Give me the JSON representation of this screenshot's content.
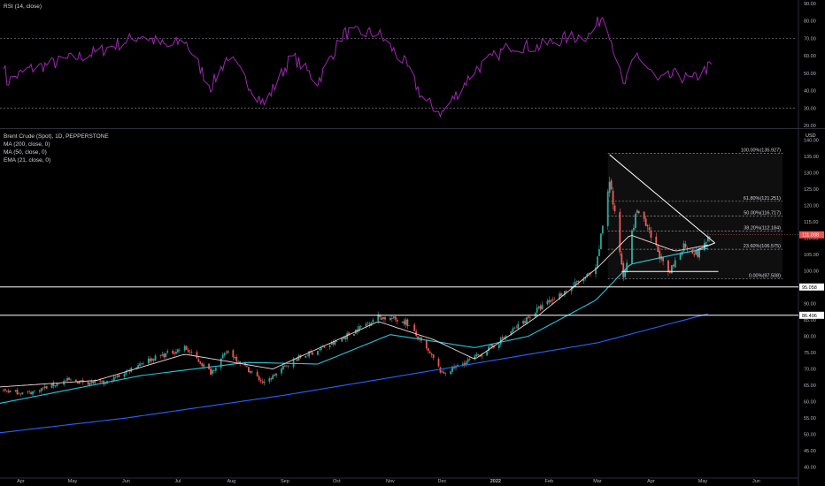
{
  "rsi_panel": {
    "label": "RSI (14, close)",
    "ticks": [
      "90.00",
      "80.00",
      "70.00",
      "60.00",
      "50.00",
      "40.00",
      "30.00",
      "20.00"
    ],
    "levels": [
      70,
      30
    ],
    "ylim": [
      20,
      90
    ],
    "color": "#9c27b0"
  },
  "main_panel": {
    "header": [
      "Brent Crude (Spot), 1D, PEPPERSTONE",
      "MA (200, close, 0)",
      "MA (50, close, 0)",
      "EMA (21, close, 0)"
    ],
    "currency": "USD",
    "ticks": [
      "140.00",
      "135.00",
      "130.00",
      "125.00",
      "120.00",
      "115.00",
      "110.00",
      "105.00",
      "100.00",
      "95.00",
      "90.00",
      "85.00",
      "80.00",
      "75.00",
      "70.00",
      "65.00",
      "60.00",
      "55.00",
      "50.00",
      "45.00",
      "40.00"
    ],
    "ylim": [
      38,
      142
    ],
    "last_price": "111.008",
    "horizontal_levels": [
      "95.058",
      "86.406"
    ],
    "fibonacci": [
      {
        "label": "100.00%(135.927)",
        "value": 135.927
      },
      {
        "label": "61.80%(121.251)",
        "value": 121.251
      },
      {
        "label": "50.00%(116.717)",
        "value": 116.717
      },
      {
        "label": "38.20%(112.184)",
        "value": 112.184
      },
      {
        "label": "23.60%(106.575)",
        "value": 106.575
      },
      {
        "label": "0.00%(97.508)",
        "value": 97.508
      }
    ],
    "colors": {
      "up": "#26a69a",
      "down": "#ef5350",
      "ema21": "#f8d6d6",
      "ma50": "#26c6da",
      "ma200": "#2962ff",
      "rsi": "#9c27b0"
    }
  },
  "x_axis": {
    "labels": [
      "Apr",
      "May",
      "Jun",
      "Jul",
      "Aug",
      "Sep",
      "Oct",
      "Nov",
      "Dec",
      "2022",
      "Feb",
      "Mar",
      "Apr",
      "May",
      "Jun"
    ]
  },
  "chart_data": {
    "type": "candlestick",
    "title": "Brent Crude (Spot), 1D, PEPPERSTONE",
    "indicators": [
      "MA (200, close, 0)",
      "MA (50, close, 0)",
      "EMA (21, close, 0)",
      "RSI (14, close)"
    ],
    "x_labels": [
      "Apr",
      "May",
      "Jun",
      "Jul",
      "Aug",
      "Sep",
      "Oct",
      "Nov",
      "Dec",
      "2022",
      "Feb",
      "Mar",
      "Apr",
      "May",
      "Jun"
    ],
    "close_anchors": [
      [
        "2021-03-20",
        63.5
      ],
      [
        "2021-04-05",
        62.5
      ],
      [
        "2021-04-28",
        66.5
      ],
      [
        "2021-05-20",
        65.5
      ],
      [
        "2021-06-10",
        72.0
      ],
      [
        "2021-07-05",
        76.5
      ],
      [
        "2021-07-20",
        69.0
      ],
      [
        "2021-07-30",
        75.5
      ],
      [
        "2021-08-20",
        65.5
      ],
      [
        "2021-09-05",
        72.5
      ],
      [
        "2021-09-30",
        78.0
      ],
      [
        "2021-10-25",
        86.0
      ],
      [
        "2021-11-10",
        84.5
      ],
      [
        "2021-11-26",
        73.0
      ],
      [
        "2021-12-01",
        68.5
      ],
      [
        "2021-12-20",
        73.5
      ],
      [
        "2022-01-01",
        77.5
      ],
      [
        "2022-01-25",
        88.0
      ],
      [
        "2022-02-15",
        95.5
      ],
      [
        "2022-02-28",
        100.0
      ],
      [
        "2022-03-08",
        128.0
      ],
      [
        "2022-03-16",
        98.5
      ],
      [
        "2022-03-24",
        119.0
      ],
      [
        "2022-04-05",
        106.0
      ],
      [
        "2022-04-11",
        98.5
      ],
      [
        "2022-04-20",
        108.0
      ],
      [
        "2022-04-28",
        105.0
      ],
      [
        "2022-05-05",
        111.0
      ]
    ],
    "ema21_anchors": [
      [
        "2021-03-20",
        64.5
      ],
      [
        "2021-05-15",
        66.5
      ],
      [
        "2021-07-05",
        74.5
      ],
      [
        "2021-08-25",
        70.0
      ],
      [
        "2021-10-25",
        84.5
      ],
      [
        "2021-11-26",
        79.0
      ],
      [
        "2021-12-20",
        73.0
      ],
      [
        "2022-01-25",
        86.0
      ],
      [
        "2022-03-01",
        101.0
      ],
      [
        "2022-03-20",
        111.0
      ],
      [
        "2022-04-15",
        106.0
      ],
      [
        "2022-05-05",
        108.0
      ]
    ],
    "ma50_anchors": [
      [
        "2021-03-20",
        59.5
      ],
      [
        "2021-06-10",
        68.0
      ],
      [
        "2021-08-10",
        72.0
      ],
      [
        "2021-09-20",
        71.5
      ],
      [
        "2021-11-01",
        80.5
      ],
      [
        "2021-12-20",
        76.5
      ],
      [
        "2022-01-20",
        80.0
      ],
      [
        "2022-02-28",
        91.0
      ],
      [
        "2022-03-20",
        102.0
      ],
      [
        "2022-04-15",
        105.0
      ],
      [
        "2022-05-05",
        107.0
      ]
    ],
    "ma200_anchors": [
      [
        "2021-03-20",
        50.5
      ],
      [
        "2021-06-01",
        55.0
      ],
      [
        "2021-09-01",
        62.0
      ],
      [
        "2021-12-01",
        70.0
      ],
      [
        "2022-03-01",
        78.0
      ],
      [
        "2022-05-05",
        87.0
      ]
    ],
    "rsi_anchors": [
      [
        "2021-03-20",
        68
      ],
      [
        "2021-03-24",
        45
      ],
      [
        "2021-04-05",
        52
      ],
      [
        "2021-05-15",
        62
      ],
      [
        "2021-06-10",
        72
      ],
      [
        "2021-06-25",
        65
      ],
      [
        "2021-07-05",
        69
      ],
      [
        "2021-07-20",
        42
      ],
      [
        "2021-07-30",
        60
      ],
      [
        "2021-08-20",
        32
      ],
      [
        "2021-09-05",
        60
      ],
      [
        "2021-09-20",
        45
      ],
      [
        "2021-10-05",
        73
      ],
      [
        "2021-10-25",
        73
      ],
      [
        "2021-11-10",
        55
      ],
      [
        "2021-11-20",
        35
      ],
      [
        "2021-12-01",
        27
      ],
      [
        "2021-12-20",
        52
      ],
      [
        "2022-01-10",
        66
      ],
      [
        "2022-01-25",
        65
      ],
      [
        "2022-02-10",
        70
      ],
      [
        "2022-02-25",
        72
      ],
      [
        "2022-03-05",
        85
      ],
      [
        "2022-03-16",
        42
      ],
      [
        "2022-03-24",
        61
      ],
      [
        "2022-04-05",
        45
      ],
      [
        "2022-04-15",
        49
      ],
      [
        "2022-04-25",
        46
      ],
      [
        "2022-05-05",
        54
      ]
    ],
    "ylim": [
      38,
      142
    ],
    "rsi_ylim": [
      20,
      90
    ]
  }
}
